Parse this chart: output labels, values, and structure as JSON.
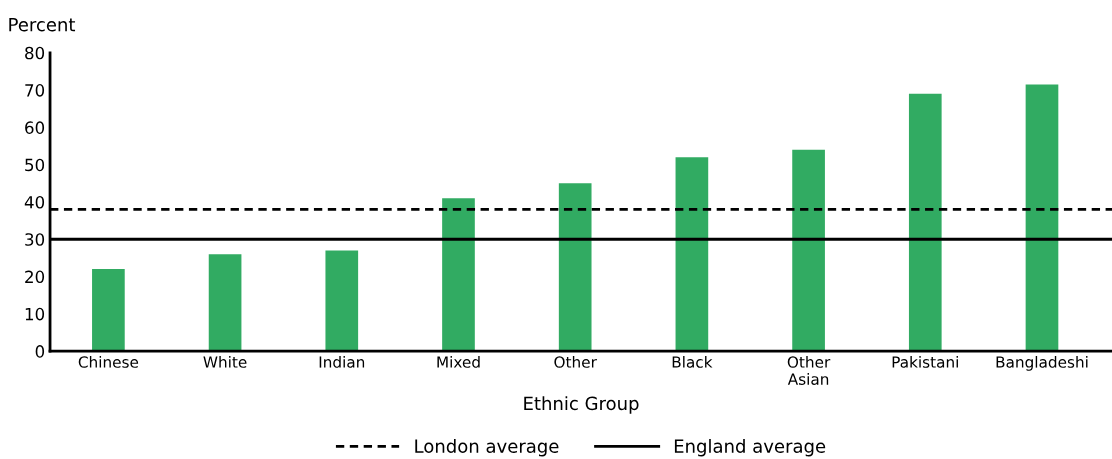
{
  "chart_data": {
    "type": "bar",
    "ylabel": "Percent",
    "xlabel": "Ethnic Group",
    "categories": [
      "Chinese",
      "White",
      "Indian",
      "Mixed",
      "Other",
      "Black",
      "Other\nAsian",
      "Pakistani",
      "Bangladeshi"
    ],
    "values": [
      22,
      26,
      27,
      41,
      45,
      52,
      54,
      69,
      71.5
    ],
    "color": "#31ab62",
    "ylim": [
      0,
      80
    ],
    "yticks": [
      0,
      10,
      20,
      30,
      40,
      50,
      60,
      70,
      80
    ],
    "ref_lines": [
      {
        "axis": "y",
        "value": 38,
        "label": "London average",
        "color": "#000000",
        "line_style": "dashed"
      },
      {
        "axis": "y",
        "value": 30,
        "label": "England average",
        "color": "#000000",
        "line_style": "solid"
      }
    ],
    "grid": false,
    "legend": "bottom"
  }
}
